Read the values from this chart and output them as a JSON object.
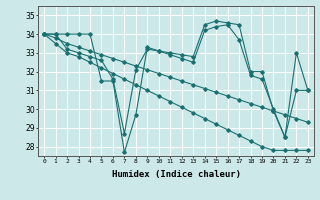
{
  "xlabel": "Humidex (Indice chaleur)",
  "background_color": "#cde8e8",
  "grid_color": "#ffffff",
  "line_color": "#1a7070",
  "xlim": [
    -0.5,
    23.5
  ],
  "ylim": [
    27.5,
    35.5
  ],
  "xticks": [
    0,
    1,
    2,
    3,
    4,
    5,
    6,
    7,
    8,
    9,
    10,
    11,
    12,
    13,
    14,
    15,
    16,
    17,
    18,
    19,
    20,
    21,
    22,
    23
  ],
  "yticks": [
    28,
    29,
    30,
    31,
    32,
    33,
    34,
    35
  ],
  "series": [
    [
      34.0,
      34.0,
      34.0,
      34.0,
      34.0,
      31.5,
      31.5,
      27.7,
      29.7,
      33.3,
      33.1,
      33.0,
      32.9,
      32.8,
      34.5,
      34.7,
      34.6,
      34.5,
      32.0,
      32.0,
      29.9,
      28.5,
      33.0,
      31.0
    ],
    [
      34.0,
      34.0,
      33.2,
      33.0,
      32.8,
      32.6,
      31.6,
      28.7,
      32.1,
      33.2,
      33.1,
      32.9,
      32.7,
      32.5,
      34.2,
      34.4,
      34.5,
      33.7,
      31.8,
      31.6,
      30.0,
      28.5,
      31.0,
      31.0
    ],
    [
      34.0,
      33.8,
      33.5,
      33.3,
      33.1,
      32.9,
      32.7,
      32.5,
      32.3,
      32.1,
      31.9,
      31.7,
      31.5,
      31.3,
      31.1,
      30.9,
      30.7,
      30.5,
      30.3,
      30.1,
      29.9,
      29.7,
      29.5,
      29.3
    ],
    [
      34.0,
      33.5,
      33.0,
      32.8,
      32.5,
      32.2,
      31.9,
      31.6,
      31.3,
      31.0,
      30.7,
      30.4,
      30.1,
      29.8,
      29.5,
      29.2,
      28.9,
      28.6,
      28.3,
      28.0,
      27.8,
      27.8,
      27.8,
      27.8
    ]
  ]
}
